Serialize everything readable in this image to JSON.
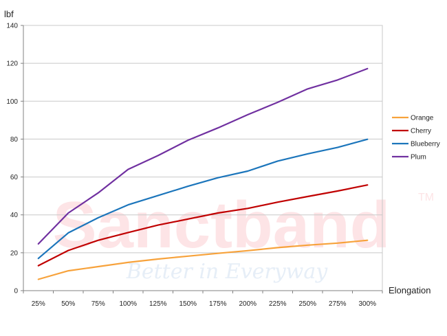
{
  "chart_data": {
    "type": "line",
    "title": "",
    "xlabel": "Elongation",
    "ylabel": "lbf",
    "ylim": [
      0,
      140
    ],
    "yticks": [
      0,
      20,
      40,
      60,
      80,
      100,
      120,
      140
    ],
    "grid": "horizontal",
    "legend": "right",
    "categories": [
      "25%",
      "50%",
      "75%",
      "100%",
      "125%",
      "150%",
      "175%",
      "200%",
      "225%",
      "250%",
      "275%",
      "300%"
    ],
    "series": [
      {
        "name": "Orange",
        "color": "#f7a23b",
        "values": [
          6,
          10.5,
          12.7,
          14.9,
          16.7,
          18.2,
          19.7,
          21.1,
          22.7,
          24.0,
          25.1,
          26.6
        ]
      },
      {
        "name": "Cherry",
        "color": "#c00000",
        "values": [
          13.2,
          21.2,
          26.6,
          30.7,
          34.6,
          37.8,
          41.0,
          43.4,
          46.7,
          49.7,
          52.6,
          55.8
        ]
      },
      {
        "name": "Blueberry",
        "color": "#1b75bb",
        "values": [
          17,
          30.5,
          38.5,
          45.3,
          50.2,
          55.1,
          59.6,
          63.1,
          68.4,
          72.2,
          75.6,
          79.9
        ]
      },
      {
        "name": "Plum",
        "color": "#7030a0",
        "values": [
          24.7,
          41.0,
          51.6,
          64.0,
          71.3,
          79.4,
          85.9,
          92.9,
          99.4,
          106.5,
          111.2,
          117.2
        ]
      }
    ]
  },
  "watermark": {
    "brand": "Sanctband",
    "trademark": "TM",
    "tagline": "Better in Everyway"
  }
}
